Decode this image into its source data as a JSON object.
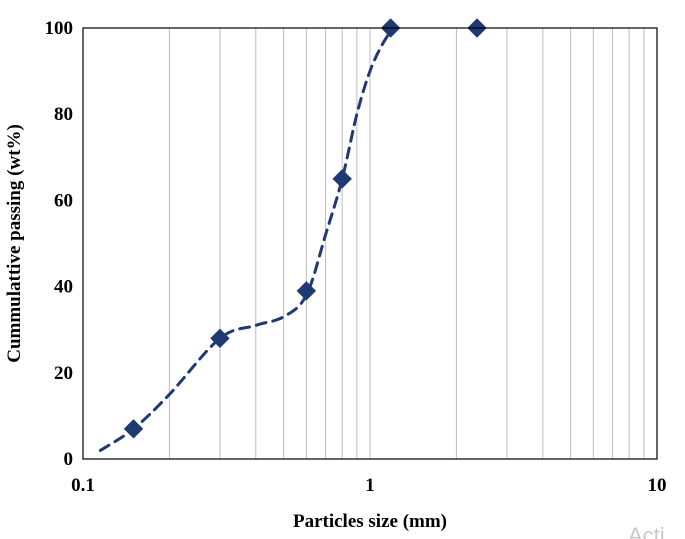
{
  "chart_data": {
    "type": "scatter",
    "xscale": "log",
    "xlabel": "Particles size (mm)",
    "ylabel": "Cummulattive passing (wt%)",
    "xlim": [
      0.1,
      10
    ],
    "ylim": [
      0,
      100
    ],
    "xticks": [
      "0.1",
      "1",
      "10"
    ],
    "yticks": [
      "0",
      "20",
      "40",
      "60",
      "80",
      "100"
    ],
    "grid": "vertical minor gridlines (log decades)",
    "marker": "diamond",
    "trendline": "dashed smooth curve",
    "colors": {
      "series": "#1f3a73",
      "grid": "#bdbdbd",
      "axis": "#000000"
    },
    "series": [
      {
        "x": [
          0.15,
          0.3,
          0.6,
          0.8,
          1.18,
          2.36
        ],
        "y": [
          7,
          28,
          39,
          65,
          100,
          100
        ]
      }
    ],
    "trend_curve": {
      "x": [
        0.115,
        0.15,
        0.2,
        0.3,
        0.4,
        0.5,
        0.6,
        0.7,
        0.8,
        0.9,
        1.0,
        1.1,
        1.2
      ],
      "y": [
        2,
        7,
        15,
        28,
        31,
        33,
        38,
        52,
        65,
        80,
        90,
        96,
        100
      ]
    }
  },
  "watermark": "Acti"
}
